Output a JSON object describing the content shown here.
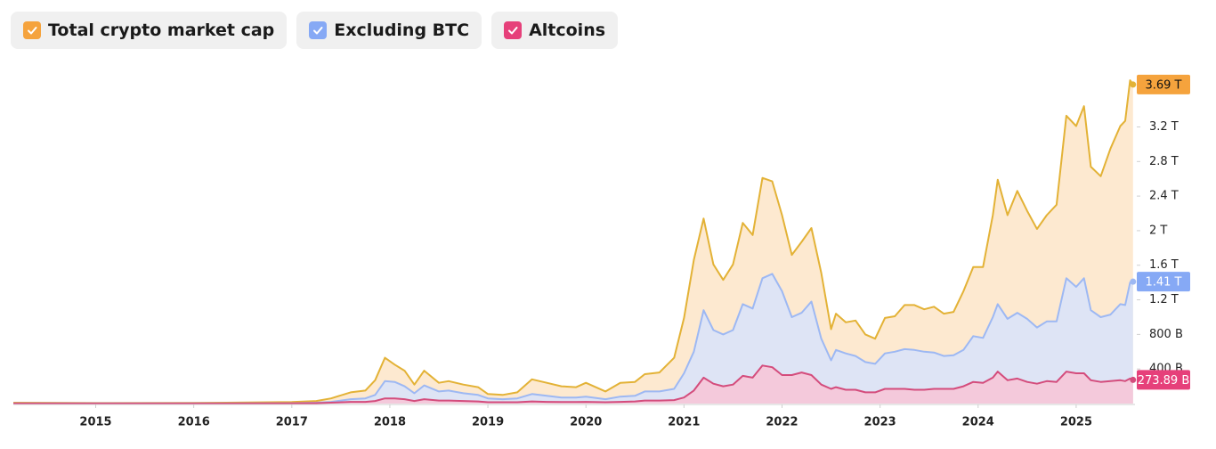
{
  "chart_data": {
    "type": "area",
    "legend": "top-left",
    "xlim": [
      2014.16,
      2025.6
    ],
    "xticks": [
      2015,
      2016,
      2017,
      2018,
      2019,
      2020,
      2021,
      2022,
      2023,
      2024,
      2025
    ],
    "ylim": [
      0,
      4.05
    ],
    "yticks": [
      {
        "value": 0.4,
        "label": "400 B"
      },
      {
        "value": 0.8,
        "label": "800 B"
      },
      {
        "value": 1.2,
        "label": "1.2 T"
      },
      {
        "value": 1.6,
        "label": "1.6 T"
      },
      {
        "value": 2,
        "label": "2 T"
      },
      {
        "value": 2.4,
        "label": "2.4 T"
      },
      {
        "value": 2.8,
        "label": "2.8 T"
      },
      {
        "value": 3.2,
        "label": "3.2 T"
      }
    ],
    "x": [
      2014.16,
      2015,
      2016,
      2017,
      2017.25,
      2017.4,
      2017.6,
      2017.75,
      2017.85,
      2017.95,
      2018.05,
      2018.15,
      2018.25,
      2018.35,
      2018.5,
      2018.6,
      2018.75,
      2018.9,
      2019.0,
      2019.15,
      2019.3,
      2019.45,
      2019.6,
      2019.75,
      2019.9,
      2020.0,
      2020.2,
      2020.35,
      2020.5,
      2020.6,
      2020.75,
      2020.9,
      2021.0,
      2021.1,
      2021.2,
      2021.3,
      2021.4,
      2021.5,
      2021.6,
      2021.7,
      2021.8,
      2021.9,
      2022.0,
      2022.1,
      2022.2,
      2022.3,
      2022.4,
      2022.5,
      2022.55,
      2022.65,
      2022.75,
      2022.85,
      2022.95,
      2023.05,
      2023.15,
      2023.25,
      2023.35,
      2023.45,
      2023.55,
      2023.65,
      2023.75,
      2023.85,
      2023.95,
      2024.05,
      2024.15,
      2024.2,
      2024.3,
      2024.4,
      2024.5,
      2024.6,
      2024.7,
      2024.8,
      2024.9,
      2025.0,
      2025.08,
      2025.15,
      2025.25,
      2025.35,
      2025.45,
      2025.5,
      2025.55,
      2025.58
    ],
    "series": [
      {
        "name": "Total crypto market cap",
        "color": "#f5a33d",
        "line_color": "#e3b236",
        "fill": "#fde5c8",
        "values": [
          0.01,
          0.006,
          0.007,
          0.018,
          0.03,
          0.06,
          0.13,
          0.15,
          0.27,
          0.53,
          0.45,
          0.38,
          0.22,
          0.38,
          0.24,
          0.26,
          0.22,
          0.19,
          0.11,
          0.1,
          0.13,
          0.28,
          0.24,
          0.2,
          0.19,
          0.24,
          0.14,
          0.24,
          0.25,
          0.34,
          0.36,
          0.53,
          0.99,
          1.66,
          2.14,
          1.61,
          1.43,
          1.61,
          2.09,
          1.95,
          2.61,
          2.57,
          2.18,
          1.72,
          1.87,
          2.03,
          1.51,
          0.86,
          1.04,
          0.94,
          0.96,
          0.8,
          0.75,
          0.99,
          1.01,
          1.14,
          1.14,
          1.09,
          1.12,
          1.04,
          1.06,
          1.3,
          1.58,
          1.58,
          2.18,
          2.59,
          2.18,
          2.46,
          2.23,
          2.02,
          2.18,
          2.3,
          3.33,
          3.21,
          3.44,
          2.74,
          2.63,
          2.95,
          3.21,
          3.27,
          3.74,
          3.69
        ],
        "value_labels": [
          null,
          null,
          null,
          null,
          null,
          null,
          null,
          null,
          null,
          null,
          null,
          null,
          null,
          null,
          null,
          null,
          null,
          null,
          null,
          null,
          null,
          null,
          null,
          null,
          null,
          null,
          null,
          null,
          null,
          null,
          null,
          null,
          null,
          null,
          null,
          null,
          null,
          null,
          null,
          null,
          null,
          null,
          null,
          null,
          null,
          null,
          null,
          null,
          null,
          null,
          null,
          null,
          null,
          null,
          null,
          null,
          null,
          null,
          null,
          null,
          null,
          null,
          null,
          null,
          null,
          null,
          null,
          null,
          null,
          null,
          null,
          null,
          null,
          null,
          null,
          null,
          null,
          null,
          null,
          null,
          null,
          "3.69 T"
        ]
      },
      {
        "name": "Excluding BTC",
        "color": "#86a9f5",
        "line_color": "#9db8f3",
        "fill": "#d8e3fc",
        "values": [
          0.002,
          0.002,
          0.002,
          0.004,
          0.01,
          0.02,
          0.05,
          0.06,
          0.1,
          0.26,
          0.25,
          0.2,
          0.12,
          0.21,
          0.14,
          0.15,
          0.12,
          0.1,
          0.06,
          0.05,
          0.06,
          0.11,
          0.09,
          0.07,
          0.07,
          0.08,
          0.05,
          0.08,
          0.09,
          0.14,
          0.14,
          0.17,
          0.35,
          0.6,
          1.08,
          0.85,
          0.8,
          0.85,
          1.15,
          1.1,
          1.45,
          1.5,
          1.3,
          1.0,
          1.05,
          1.18,
          0.75,
          0.5,
          0.62,
          0.58,
          0.55,
          0.48,
          0.46,
          0.58,
          0.6,
          0.63,
          0.62,
          0.6,
          0.59,
          0.55,
          0.56,
          0.62,
          0.78,
          0.76,
          1.0,
          1.15,
          0.98,
          1.05,
          0.98,
          0.88,
          0.95,
          0.95,
          1.45,
          1.35,
          1.45,
          1.08,
          1.0,
          1.03,
          1.15,
          1.14,
          1.4,
          1.41
        ],
        "value_labels": [
          null,
          null,
          null,
          null,
          null,
          null,
          null,
          null,
          null,
          null,
          null,
          null,
          null,
          null,
          null,
          null,
          null,
          null,
          null,
          null,
          null,
          null,
          null,
          null,
          null,
          null,
          null,
          null,
          null,
          null,
          null,
          null,
          null,
          null,
          null,
          null,
          null,
          null,
          null,
          null,
          null,
          null,
          null,
          null,
          null,
          null,
          null,
          null,
          null,
          null,
          null,
          null,
          null,
          null,
          null,
          null,
          null,
          null,
          null,
          null,
          null,
          null,
          null,
          null,
          null,
          null,
          null,
          null,
          null,
          null,
          null,
          null,
          null,
          null,
          null,
          null,
          null,
          null,
          null,
          null,
          null,
          "1.41 T"
        ]
      },
      {
        "name": "Altcoins",
        "color": "#e6407a",
        "line_color": "#d44c7c",
        "fill": "#f8c4d6",
        "values": [
          0.001,
          0.001,
          0.001,
          0.002,
          0.005,
          0.01,
          0.02,
          0.02,
          0.03,
          0.06,
          0.06,
          0.05,
          0.03,
          0.05,
          0.035,
          0.035,
          0.03,
          0.025,
          0.015,
          0.015,
          0.015,
          0.025,
          0.02,
          0.018,
          0.018,
          0.02,
          0.015,
          0.02,
          0.025,
          0.035,
          0.035,
          0.04,
          0.07,
          0.15,
          0.3,
          0.23,
          0.2,
          0.22,
          0.32,
          0.3,
          0.44,
          0.42,
          0.33,
          0.33,
          0.36,
          0.33,
          0.22,
          0.17,
          0.19,
          0.16,
          0.16,
          0.13,
          0.13,
          0.17,
          0.17,
          0.17,
          0.16,
          0.16,
          0.17,
          0.17,
          0.17,
          0.2,
          0.25,
          0.24,
          0.3,
          0.37,
          0.27,
          0.29,
          0.25,
          0.23,
          0.26,
          0.25,
          0.37,
          0.35,
          0.35,
          0.27,
          0.25,
          0.26,
          0.27,
          0.26,
          0.29,
          0.27389
        ],
        "value_labels": [
          null,
          null,
          null,
          null,
          null,
          null,
          null,
          null,
          null,
          null,
          null,
          null,
          null,
          null,
          null,
          null,
          null,
          null,
          null,
          null,
          null,
          null,
          null,
          null,
          null,
          null,
          null,
          null,
          null,
          null,
          null,
          null,
          null,
          null,
          null,
          null,
          null,
          null,
          null,
          null,
          null,
          null,
          null,
          null,
          null,
          null,
          null,
          null,
          null,
          null,
          null,
          null,
          null,
          null,
          null,
          null,
          null,
          null,
          null,
          null,
          null,
          null,
          null,
          null,
          null,
          null,
          null,
          null,
          null,
          null,
          null,
          null,
          null,
          null,
          null,
          null,
          null,
          null,
          null,
          null,
          null,
          "273.89 B"
        ]
      }
    ]
  }
}
